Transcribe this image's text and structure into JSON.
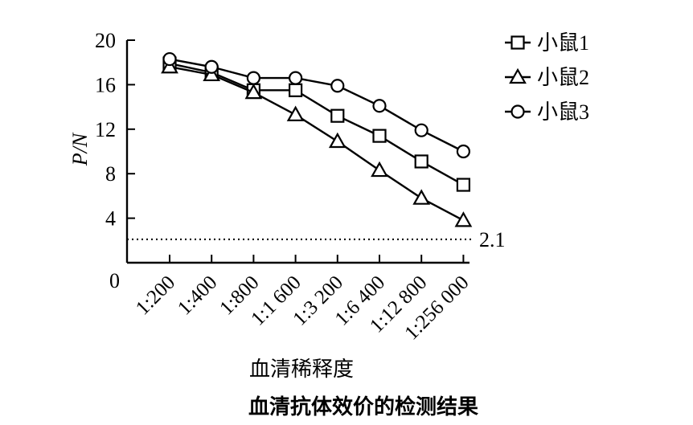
{
  "chart_data": {
    "type": "line",
    "title": "血清抗体效价的检测结果",
    "xlabel": "血清稀释度",
    "ylabel": "P/N",
    "categories": [
      "1:200",
      "1:400",
      "1:800",
      "1:1 600",
      "1:3 200",
      "1:6 400",
      "1:12 800",
      "1:256 000"
    ],
    "ylim": [
      0,
      20
    ],
    "y_ticks": [
      {
        "value": 0,
        "label": "0"
      },
      {
        "value": 4,
        "label": "4"
      },
      {
        "value": 8,
        "label": "8"
      },
      {
        "value": 12,
        "label": "12"
      },
      {
        "value": 16,
        "label": "16"
      },
      {
        "value": 20,
        "label": "20"
      }
    ],
    "reference_line": {
      "value": 2.1,
      "label": "2.1",
      "style": "dotted"
    },
    "legend_position": "top-right",
    "series": [
      {
        "name": "小鼠1",
        "marker": "square",
        "values": [
          17.9,
          17.1,
          15.5,
          15.5,
          13.2,
          11.4,
          9.1,
          7.0
        ]
      },
      {
        "name": "小鼠2",
        "marker": "triangle",
        "values": [
          17.6,
          16.9,
          15.3,
          13.3,
          10.9,
          8.3,
          5.8,
          3.8
        ]
      },
      {
        "name": "小鼠3",
        "marker": "circle",
        "values": [
          18.3,
          17.6,
          16.6,
          16.6,
          15.9,
          14.1,
          11.9,
          10.0
        ]
      }
    ],
    "grid": false
  }
}
